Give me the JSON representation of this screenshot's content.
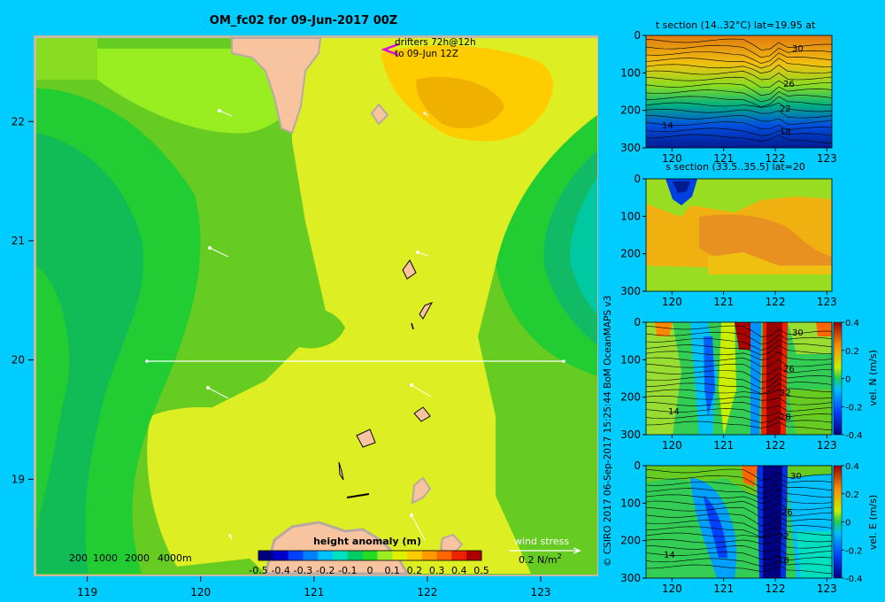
{
  "title": "OM_fc02 for 09-Jun-2017 00Z",
  "credit": "© CSIRO 2017   06-Sep-2017 15:25:44 BoM OceanMAPS v3",
  "colors": {
    "background": "#00ccff",
    "land": "#f8c4a0",
    "land_border": "#b8aaa0"
  },
  "chart_data": [
    {
      "type": "heatmap",
      "name": "main-map",
      "title": "OM_fc02 for 09-Jun-2017 00Z",
      "x_ticks": [
        "119",
        "120",
        "121",
        "122",
        "123"
      ],
      "y_ticks": [
        "22",
        "21",
        "20",
        "19"
      ],
      "xlim": [
        118.55,
        123.5
      ],
      "ylim": [
        18.2,
        22.7
      ],
      "section_line": {
        "lat": 20,
        "lon_start": 119.5,
        "lon_end": 123.2
      },
      "drifter_note": [
        "drifters 72h@12h",
        "to 09-Jun 12Z"
      ],
      "depth_legend": [
        "200",
        "1000",
        "2000",
        "4000m"
      ],
      "wind_stress": {
        "label": "wind stress",
        "scale": "0.2 N/m",
        "superscript": "2"
      },
      "colorbar": {
        "label": "height anomaly (m)",
        "ticks": [
          "-0.5",
          "-0.4",
          "-0.3",
          "-0.2",
          "-0.1",
          "0",
          "0.1",
          "0.2",
          "0.3",
          "0.4",
          "0.5"
        ],
        "range": [
          -0.5,
          0.5
        ],
        "colors": [
          "#000080",
          "#0000cc",
          "#0040ff",
          "#0080ff",
          "#00c0ff",
          "#00e0c0",
          "#00cc66",
          "#22dd22",
          "#99ee22",
          "#e0ee00",
          "#ffcc00",
          "#ff9900",
          "#ff6600",
          "#ee2200",
          "#aa0000"
        ]
      }
    },
    {
      "type": "heatmap",
      "name": "t-section",
      "title": "t section (14..32°C) lat=19.95 at",
      "x_ticks": [
        "120",
        "121",
        "122",
        "123"
      ],
      "y_ticks": [
        "0",
        "100",
        "200",
        "300"
      ],
      "contour_labels": [
        "30",
        "26",
        "22",
        "18",
        "14"
      ]
    },
    {
      "type": "heatmap",
      "name": "s-section",
      "title": "s section (33.5..35.5) lat=20",
      "x_ticks": [
        "120",
        "121",
        "122",
        "123"
      ],
      "y_ticks": [
        "0",
        "100",
        "200",
        "300"
      ]
    },
    {
      "type": "heatmap",
      "name": "vn-section",
      "x_ticks": [
        "120",
        "121",
        "122",
        "123"
      ],
      "y_ticks": [
        "0",
        "100",
        "200",
        "300"
      ],
      "contour_labels": [
        "30",
        "26",
        "22",
        "18",
        "14"
      ],
      "colorbar": {
        "label": "vel. N (m/s)",
        "ticks": [
          "0.4",
          "0.2",
          "0",
          "-0.2",
          "-0.4"
        ],
        "range": [
          -0.4,
          0.4
        ]
      }
    },
    {
      "type": "heatmap",
      "name": "ve-section",
      "x_ticks": [
        "120",
        "121",
        "122",
        "123"
      ],
      "y_ticks": [
        "0",
        "100",
        "200",
        "300"
      ],
      "contour_labels": [
        "30",
        "26",
        "22",
        "18",
        "14"
      ],
      "colorbar": {
        "label": "vel. E (m/s)",
        "ticks": [
          "0.4",
          "0.2",
          "0",
          "-0.2",
          "-0.4"
        ],
        "range": [
          -0.4,
          0.4
        ]
      }
    }
  ]
}
